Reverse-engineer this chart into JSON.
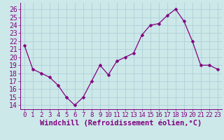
{
  "x": [
    0,
    1,
    2,
    3,
    4,
    5,
    6,
    7,
    8,
    9,
    10,
    11,
    12,
    13,
    14,
    15,
    16,
    17,
    18,
    19,
    20,
    21,
    22,
    23
  ],
  "y": [
    21.5,
    18.5,
    18.0,
    17.5,
    16.5,
    15.0,
    14.0,
    15.0,
    17.0,
    19.0,
    17.8,
    19.5,
    20.0,
    20.5,
    22.8,
    24.0,
    24.2,
    25.2,
    26.0,
    24.5,
    22.0,
    19.0,
    19.0,
    18.5
  ],
  "line_color": "#800080",
  "marker": "D",
  "marker_size": 2.5,
  "bg_color": "#cce8e8",
  "grid_color": "#b0d0d8",
  "ylabel_ticks": [
    14,
    15,
    16,
    17,
    18,
    19,
    20,
    21,
    22,
    23,
    24,
    25,
    26
  ],
  "xlabel": "Windchill (Refroidissement éolien,°C)",
  "ylim": [
    13.5,
    26.8
  ],
  "xlim": [
    -0.5,
    23.5
  ],
  "tick_color": "#800080",
  "font_color": "#800080",
  "font_size": 7.0,
  "label_font_size": 7.5
}
